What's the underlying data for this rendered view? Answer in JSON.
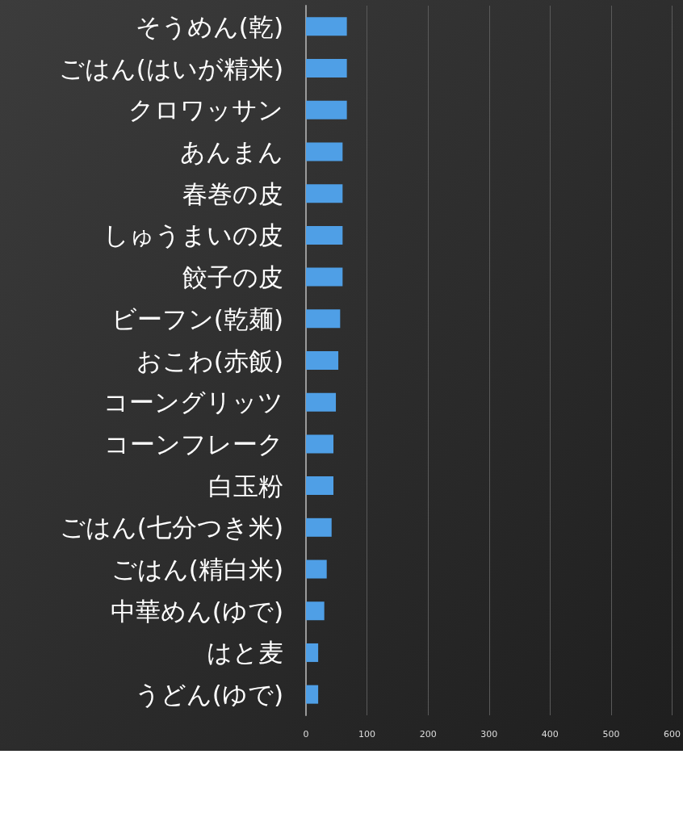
{
  "chart_data": {
    "type": "bar",
    "orientation": "horizontal",
    "categories": [
      "そうめん(乾)",
      "ごはん(はいが精米)",
      "クロワッサン",
      "あんまん",
      "春巻の皮",
      "しゅうまいの皮",
      "餃子の皮",
      "ビーフン(乾麺)",
      "おこわ(赤飯)",
      "コーングリッツ",
      "コーンフレーク",
      "白玉粉",
      "ごはん(七分つき米)",
      "ごはん(精白米)",
      "中華めん(ゆで)",
      "はと麦",
      "うどん(ゆで)"
    ],
    "values": [
      67,
      67,
      67,
      60,
      60,
      60,
      60,
      56,
      53,
      49,
      45,
      45,
      42,
      34,
      30,
      20,
      20
    ],
    "color": "#4f9fe6",
    "xlim": [
      0,
      600
    ],
    "xticks": [
      0,
      100,
      200,
      300,
      400,
      500,
      600
    ],
    "grid": "x"
  }
}
